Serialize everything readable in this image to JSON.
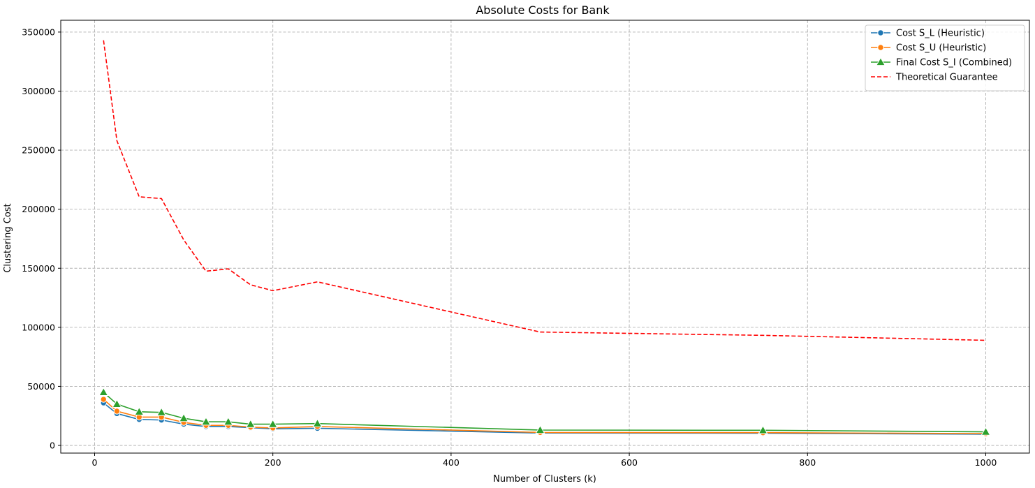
{
  "chart_data": {
    "type": "line",
    "title": "Absolute Costs for Bank",
    "xlabel": "Number of Clusters (k)",
    "ylabel": "Clustering Cost",
    "xlim": [
      -38,
      1049
    ],
    "ylim": [
      -6500,
      360000
    ],
    "xticks": [
      0,
      200,
      400,
      600,
      800,
      1000
    ],
    "yticks": [
      0,
      50000,
      100000,
      150000,
      200000,
      250000,
      300000,
      350000
    ],
    "grid": true,
    "legend_position": "top-right",
    "x": [
      10,
      25,
      50,
      75,
      100,
      125,
      150,
      175,
      200,
      250,
      500,
      750,
      1000
    ],
    "series": [
      {
        "name": "Cost S_L (Heuristic)",
        "color": "#1f77b4",
        "marker": "circle",
        "line_style": "solid",
        "values": [
          36000,
          27000,
          22000,
          21500,
          18000,
          16000,
          16000,
          15000,
          14000,
          14500,
          10500,
          10300,
          9500
        ]
      },
      {
        "name": "Cost S_U (Heuristic)",
        "color": "#ff7f0e",
        "marker": "circle",
        "line_style": "solid",
        "values": [
          39000,
          29000,
          24000,
          24000,
          19500,
          17000,
          17000,
          15500,
          14800,
          16000,
          11000,
          10800,
          10000
        ]
      },
      {
        "name": "Final Cost S_I (Combined)",
        "color": "#2ca02c",
        "marker": "triangle",
        "line_style": "solid",
        "values": [
          45000,
          35000,
          28500,
          28000,
          23000,
          20000,
          20000,
          18000,
          18000,
          18500,
          13000,
          12800,
          11500
        ]
      },
      {
        "name": "Theoretical Guarantee",
        "color": "#ff0000",
        "marker": "none",
        "line_style": "dashed",
        "values": [
          343000,
          258000,
          210500,
          209000,
          174000,
          147500,
          149500,
          136000,
          131000,
          138500,
          96000,
          93200,
          89000
        ]
      }
    ]
  }
}
